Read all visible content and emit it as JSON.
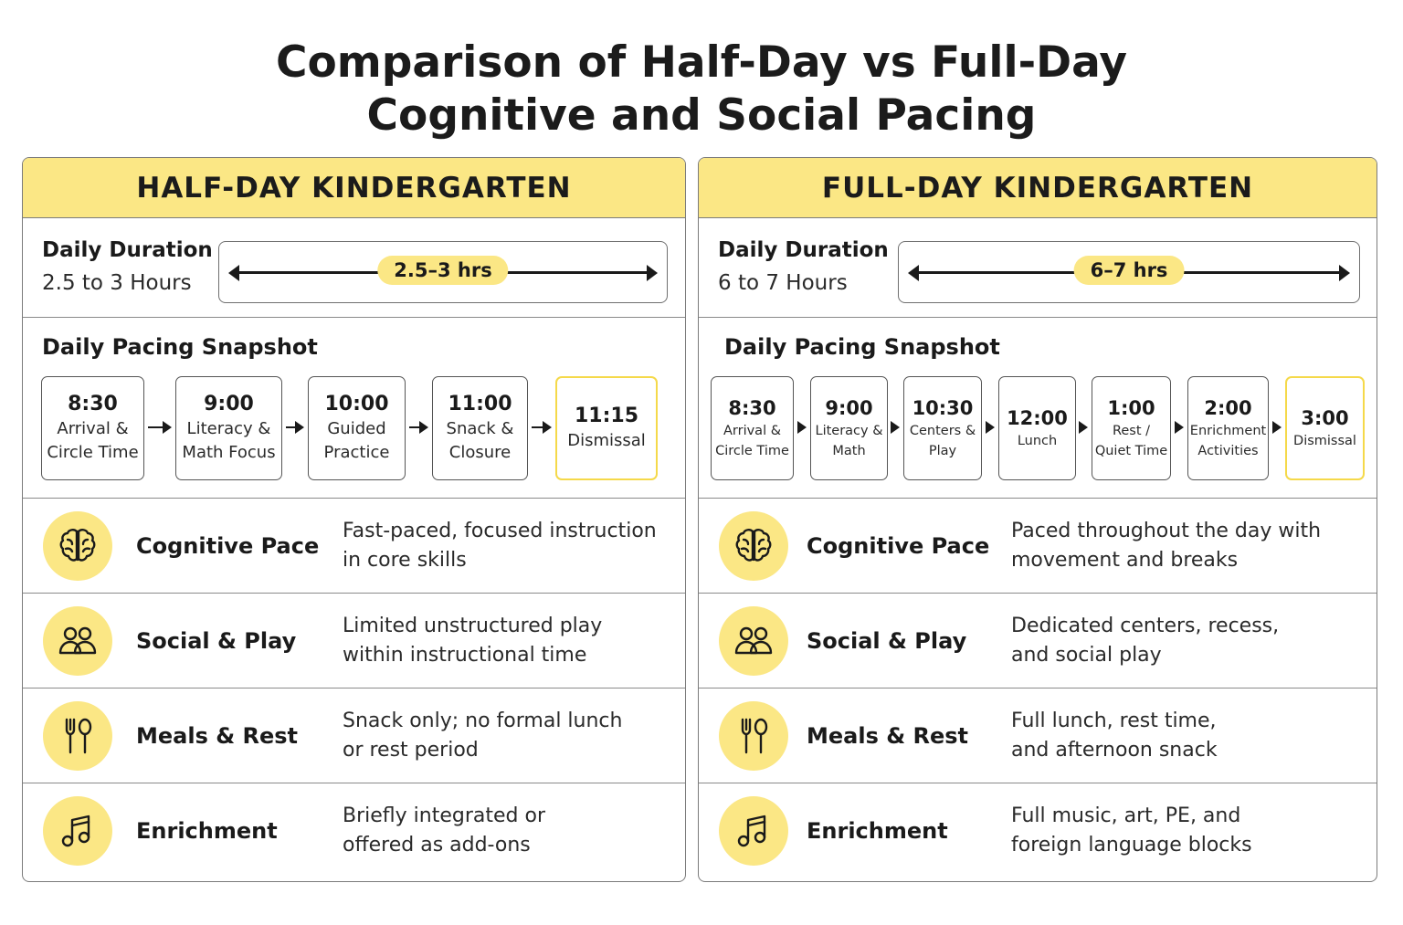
{
  "title_line1": "Comparison of Half-Day vs Full-Day",
  "title_line2": "Cognitive and Social Pacing",
  "half": {
    "header": "HALF-DAY KINDERGARTEN",
    "duration_label": "Daily Duration",
    "duration_value": "2.5 to 3 Hours",
    "duration_badge": "2.5–3 hrs",
    "pacing_title": "Daily Pacing Snapshot",
    "steps": [
      {
        "time": "8:30",
        "line1": "Arrival &",
        "line2": "Circle Time"
      },
      {
        "time": "9:00",
        "line1": "Literacy &",
        "line2": "Math Focus"
      },
      {
        "time": "10:00",
        "line1": "Guided",
        "line2": "Practice"
      },
      {
        "time": "11:00",
        "line1": "Snack &",
        "line2": "Closure"
      },
      {
        "time": "11:15",
        "line1": "Dismissal",
        "line2": ""
      }
    ],
    "rows": [
      {
        "icon": "brain-icon",
        "label": "Cognitive Pace",
        "line1": "Fast-paced, focused instruction",
        "line2": "in core skills"
      },
      {
        "icon": "people-icon",
        "label": "Social & Play",
        "line1": "Limited unstructured play",
        "line2": "within instructional time"
      },
      {
        "icon": "fork-spoon-icon",
        "label": "Meals & Rest",
        "line1": "Snack only; no formal lunch",
        "line2": "or rest period"
      },
      {
        "icon": "music-note-icon",
        "label": "Enrichment",
        "line1": "Briefly integrated or",
        "line2": "offered as add-ons"
      }
    ]
  },
  "full": {
    "header": "FULL-DAY KINDERGARTEN",
    "duration_label": "Daily Duration",
    "duration_value": "6 to 7 Hours",
    "duration_badge": "6–7 hrs",
    "pacing_title": "Daily Pacing Snapshot",
    "steps": [
      {
        "time": "8:30",
        "line1": "Arrival &",
        "line2": "Circle Time"
      },
      {
        "time": "9:00",
        "line1": "Literacy &",
        "line2": "Math"
      },
      {
        "time": "10:30",
        "line1": "Centers &",
        "line2": "Play"
      },
      {
        "time": "12:00",
        "line1": "Lunch",
        "line2": ""
      },
      {
        "time": "1:00",
        "line1": "Rest /",
        "line2": "Quiet Time"
      },
      {
        "time": "2:00",
        "line1": "Enrichment",
        "line2": "Activities"
      },
      {
        "time": "3:00",
        "line1": "Dismissal",
        "line2": ""
      }
    ],
    "rows": [
      {
        "icon": "brain-icon",
        "label": "Cognitive Pace",
        "line1": "Paced throughout the day with",
        "line2": "movement and breaks"
      },
      {
        "icon": "people-icon",
        "label": "Social & Play",
        "line1": "Dedicated centers, recess,",
        "line2": "and social play"
      },
      {
        "icon": "fork-spoon-icon",
        "label": "Meals & Rest",
        "line1": "Full lunch, rest time,",
        "line2": "and afternoon snack"
      },
      {
        "icon": "music-note-icon",
        "label": "Enrichment",
        "line1": "Full music, art, PE, and",
        "line2": "foreign language blocks"
      }
    ]
  },
  "colors": {
    "accent": "#fbe785",
    "highlight_border": "#f5d94a",
    "border": "#7b7b7b"
  }
}
